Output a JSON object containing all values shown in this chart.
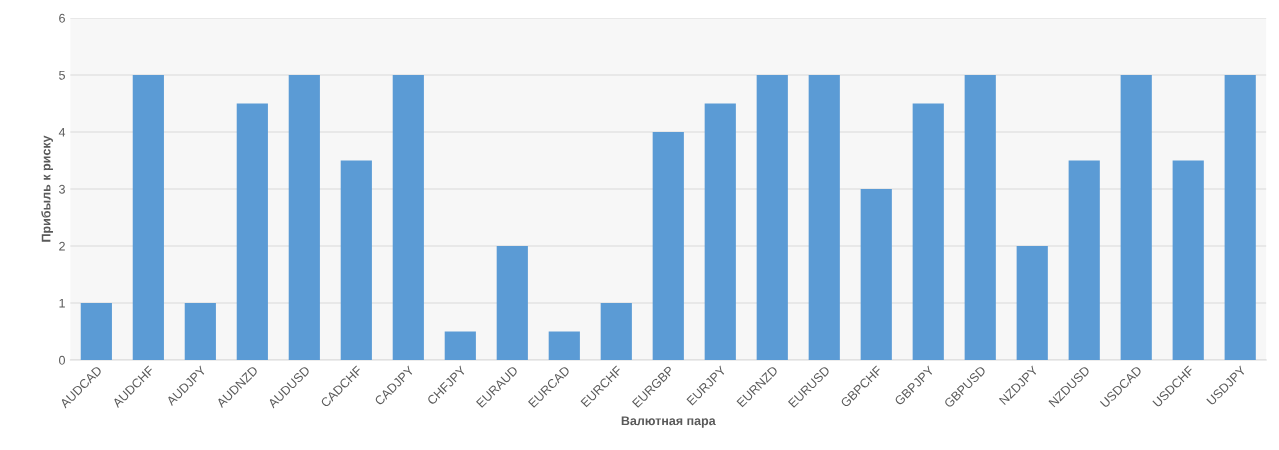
{
  "chart_data": {
    "type": "bar",
    "xlabel": "Валютная пара",
    "ylabel": "Прибыль к риску",
    "categories": [
      "AUDCAD",
      "AUDCHF",
      "AUDJPY",
      "AUDNZD",
      "AUDUSD",
      "CADCHF",
      "CADJPY",
      "CHFJPY",
      "EURAUD",
      "EURCAD",
      "EURCHF",
      "EURGBP",
      "EURJPY",
      "EURNZD",
      "EURUSD",
      "GBPCHF",
      "GBPJPY",
      "GBPUSD",
      "NZDJPY",
      "NZDUSD",
      "USDCAD",
      "USDCHF",
      "USDJPY"
    ],
    "values": [
      1,
      5,
      1,
      4.5,
      5,
      3.5,
      5,
      0.5,
      2,
      0.5,
      1,
      4,
      4.5,
      5,
      5,
      3,
      4.5,
      5,
      2,
      3.5,
      5,
      3.5,
      5
    ],
    "color": "#5b9bd5",
    "ylim": [
      0,
      6
    ],
    "yticks": [
      0,
      1,
      2,
      3,
      4,
      5,
      6
    ],
    "grid": "y"
  }
}
